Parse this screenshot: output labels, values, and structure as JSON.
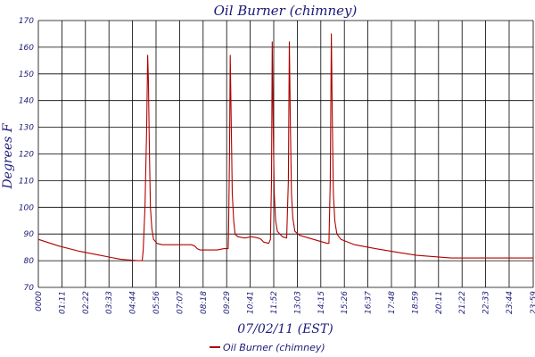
{
  "chart_data": {
    "type": "line",
    "title": "Oil Burner (chimney)",
    "xlabel": "07/02/11 (EST)",
    "ylabel": "Degrees F",
    "ylim": [
      70,
      170
    ],
    "yticks": [
      "70",
      "80",
      "90",
      "100",
      "110",
      "120",
      "130",
      "140",
      "150",
      "160",
      "170"
    ],
    "xticks": [
      "0000",
      "01:11",
      "02:22",
      "03:33",
      "04:44",
      "05:56",
      "07:07",
      "08:18",
      "09:29",
      "10:41",
      "11:52",
      "13:03",
      "14:15",
      "15:26",
      "16:37",
      "17:48",
      "18:59",
      "20:11",
      "21:22",
      "22:33",
      "23:44",
      "23:59"
    ],
    "grid": true,
    "legend_position": "bottom-center",
    "colors": {
      "series": "#b00000",
      "text": "#1a1a78",
      "grid": "#000000"
    },
    "series": [
      {
        "name": "Oil Burner (chimney)",
        "points": [
          [
            0,
            88
          ],
          [
            60,
            85.5
          ],
          [
            120,
            83.5
          ],
          [
            180,
            82
          ],
          [
            240,
            80.5
          ],
          [
            290,
            80
          ],
          [
            302,
            80
          ],
          [
            305,
            84
          ],
          [
            310,
            100
          ],
          [
            315,
            130
          ],
          [
            318,
            157
          ],
          [
            320,
            148
          ],
          [
            323,
            120
          ],
          [
            326,
            100
          ],
          [
            330,
            92
          ],
          [
            335,
            88
          ],
          [
            345,
            86.5
          ],
          [
            360,
            86
          ],
          [
            400,
            86
          ],
          [
            445,
            86
          ],
          [
            455,
            85.5
          ],
          [
            462,
            84.5
          ],
          [
            470,
            84
          ],
          [
            500,
            84
          ],
          [
            520,
            84
          ],
          [
            540,
            84.5
          ],
          [
            552,
            84.5
          ],
          [
            553,
            90
          ],
          [
            556,
            120
          ],
          [
            558,
            157
          ],
          [
            561,
            130
          ],
          [
            564,
            105
          ],
          [
            568,
            95
          ],
          [
            572,
            90
          ],
          [
            580,
            89
          ],
          [
            600,
            88.5
          ],
          [
            620,
            89
          ],
          [
            640,
            88.5
          ],
          [
            648,
            88
          ],
          [
            655,
            87
          ],
          [
            670,
            86.5
          ],
          [
            675,
            88
          ],
          [
            678,
            110
          ],
          [
            680,
            162
          ],
          [
            683,
            130
          ],
          [
            686,
            105
          ],
          [
            690,
            95
          ],
          [
            695,
            91
          ],
          [
            710,
            89
          ],
          [
            722,
            88.5
          ],
          [
            727,
            110
          ],
          [
            730,
            162
          ],
          [
            733,
            130
          ],
          [
            736,
            105
          ],
          [
            740,
            96
          ],
          [
            746,
            91
          ],
          [
            760,
            89.5
          ],
          [
            800,
            88
          ],
          [
            840,
            86.5
          ],
          [
            845,
            86.5
          ],
          [
            849,
            110
          ],
          [
            852,
            165
          ],
          [
            855,
            130
          ],
          [
            858,
            105
          ],
          [
            862,
            95
          ],
          [
            868,
            90
          ],
          [
            880,
            88
          ],
          [
            920,
            86
          ],
          [
            980,
            84.5
          ],
          [
            1050,
            83
          ],
          [
            1100,
            82
          ],
          [
            1150,
            81.5
          ],
          [
            1200,
            81
          ],
          [
            1260,
            81
          ],
          [
            1320,
            81
          ],
          [
            1439,
            81
          ]
        ]
      }
    ]
  }
}
